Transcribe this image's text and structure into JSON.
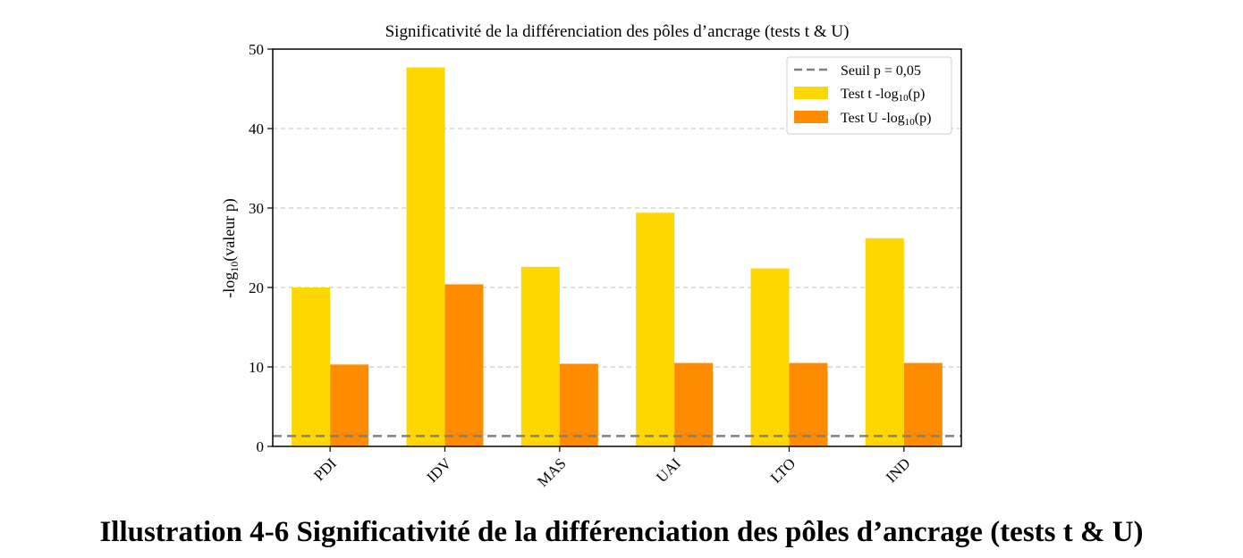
{
  "caption": "Illustration 4-6 Significativité de la différenciation des pôles d’ancrage (tests t & U)",
  "chart_data": {
    "type": "bar",
    "title": "Significativité de la différenciation des pôles d’ancrage (tests t & U)",
    "xlabel": "",
    "ylabel": {
      "pre": "-log",
      "sub": "10",
      "post": "(valeur p)"
    },
    "categories": [
      "PDI",
      "IDV",
      "MAS",
      "UAI",
      "LTO",
      "IND"
    ],
    "series": [
      {
        "name": {
          "pre": "Test t -log",
          "sub": "10",
          "post": "(p)"
        },
        "color": "#FFD700",
        "values": [
          20.0,
          47.7,
          22.6,
          29.4,
          22.4,
          26.2
        ]
      },
      {
        "name": {
          "pre": "Test U -log",
          "sub": "10",
          "post": "(p)"
        },
        "color": "#FF8C00",
        "values": [
          10.3,
          20.4,
          10.4,
          10.5,
          10.5,
          10.5
        ]
      }
    ],
    "threshold": {
      "name": "Seuil p = 0,05",
      "value": 1.301,
      "color": "#808080",
      "style": "dashed"
    },
    "ylim": [
      0,
      50
    ],
    "yticks": [
      0,
      10,
      20,
      30,
      40,
      50
    ],
    "grid": "horizontal dashed",
    "legend": "top-right"
  }
}
